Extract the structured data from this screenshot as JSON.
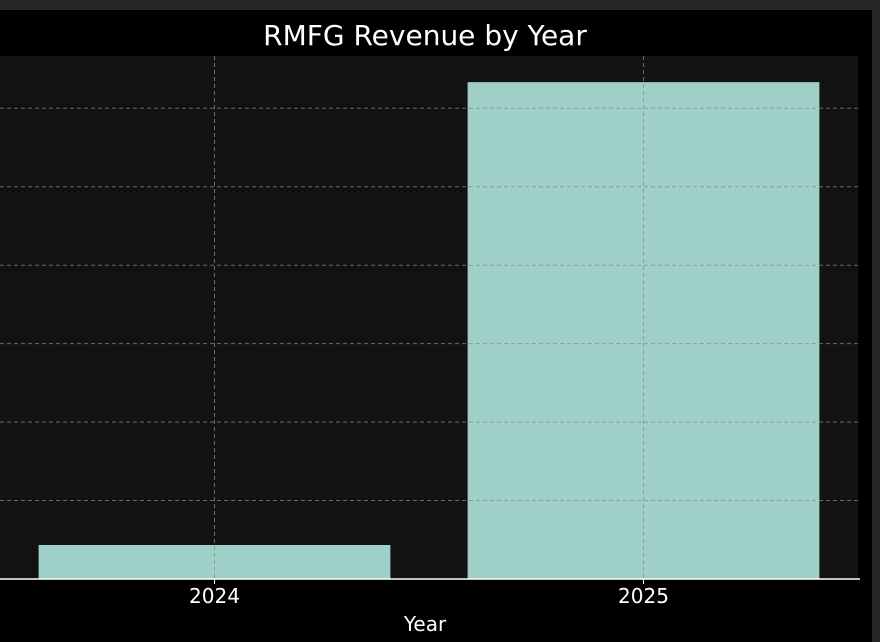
{
  "chart_data": {
    "type": "bar",
    "title": "RMFG Revenue by Year",
    "xlabel": "Year",
    "ylabel": "",
    "categories": [
      "2024",
      "2025"
    ],
    "values": [
      1.3,
      19.0
    ],
    "ylim": [
      0,
      20
    ],
    "yticks": [
      0,
      3,
      6,
      9,
      12,
      15,
      18
    ],
    "grid": true,
    "colors": {
      "bar": "#9fd0c7",
      "plot_bg": "#121212",
      "figure_bg": "#000000",
      "grid": "#8a8a8a",
      "axis": "#ffffff",
      "text": "#ffffff"
    }
  }
}
